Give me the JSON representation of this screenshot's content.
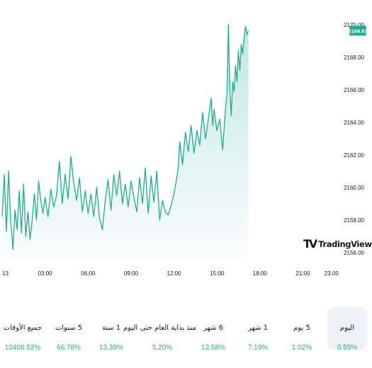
{
  "chart_data": {
    "type": "area",
    "x_ticks": [
      "13",
      "03:00",
      "06:00",
      "09:00",
      "12:00",
      "15:00",
      "18:00",
      "21:00",
      "23:00"
    ],
    "y_ticks": [
      "2170.00",
      "2168.00",
      "2166.00",
      "2164.00",
      "2162.00",
      "2160.00",
      "2158.00",
      "2156.00"
    ],
    "ylim": [
      2155.6,
      2170.3
    ],
    "x_range_hours": [
      0,
      24
    ],
    "last_price": "2169.63",
    "series": [
      {
        "values": [
          [
            0.0,
            2158.2
          ],
          [
            0.15,
            2160.8
          ],
          [
            0.3,
            2157.3
          ],
          [
            0.45,
            2161.0
          ],
          [
            0.6,
            2158.0
          ],
          [
            0.75,
            2156.2
          ],
          [
            0.9,
            2158.6
          ],
          [
            1.05,
            2157.4
          ],
          [
            1.2,
            2159.8
          ],
          [
            1.35,
            2157.2
          ],
          [
            1.5,
            2160.2
          ],
          [
            1.65,
            2157.0
          ],
          [
            1.8,
            2158.5
          ],
          [
            1.95,
            2156.8
          ],
          [
            2.1,
            2158.0
          ],
          [
            2.25,
            2159.6
          ],
          [
            2.4,
            2158.0
          ],
          [
            2.55,
            2160.4
          ],
          [
            2.7,
            2159.2
          ],
          [
            2.85,
            2158.4
          ],
          [
            3.0,
            2159.4
          ],
          [
            3.2,
            2158.2
          ],
          [
            3.4,
            2159.9
          ],
          [
            3.6,
            2158.8
          ],
          [
            3.8,
            2159.5
          ],
          [
            4.0,
            2161.6
          ],
          [
            4.2,
            2159.0
          ],
          [
            4.4,
            2160.8
          ],
          [
            4.6,
            2159.3
          ],
          [
            4.8,
            2161.9
          ],
          [
            5.0,
            2160.3
          ],
          [
            5.2,
            2159.2
          ],
          [
            5.4,
            2160.6
          ],
          [
            5.6,
            2158.5
          ],
          [
            5.8,
            2159.8
          ],
          [
            6.0,
            2158.4
          ],
          [
            6.2,
            2159.6
          ],
          [
            6.4,
            2158.2
          ],
          [
            6.6,
            2160.0
          ],
          [
            6.8,
            2158.1
          ],
          [
            7.0,
            2157.4
          ],
          [
            7.2,
            2159.2
          ],
          [
            7.4,
            2160.5
          ],
          [
            7.6,
            2158.6
          ],
          [
            7.8,
            2160.8
          ],
          [
            8.0,
            2159.5
          ],
          [
            8.2,
            2161.0
          ],
          [
            8.4,
            2159.0
          ],
          [
            8.6,
            2160.2
          ],
          [
            8.8,
            2158.8
          ],
          [
            9.0,
            2160.4
          ],
          [
            9.2,
            2159.4
          ],
          [
            9.4,
            2158.5
          ],
          [
            9.6,
            2160.6
          ],
          [
            9.8,
            2159.0
          ],
          [
            10.0,
            2161.2
          ],
          [
            10.2,
            2158.4
          ],
          [
            10.4,
            2160.7
          ],
          [
            10.6,
            2159.1
          ],
          [
            10.8,
            2161.0
          ],
          [
            11.0,
            2158.0
          ],
          [
            11.2,
            2159.2
          ],
          [
            11.4,
            2158.5
          ],
          [
            11.6,
            2158.3
          ],
          [
            11.8,
            2158.9
          ],
          [
            12.0,
            2159.6
          ],
          [
            12.2,
            2160.6
          ],
          [
            12.3,
            2161.2
          ],
          [
            12.4,
            2162.8
          ],
          [
            12.6,
            2161.4
          ],
          [
            12.8,
            2163.4
          ],
          [
            13.0,
            2162.2
          ],
          [
            13.2,
            2163.8
          ],
          [
            13.4,
            2162.1
          ],
          [
            13.6,
            2163.5
          ],
          [
            13.8,
            2162.6
          ],
          [
            14.0,
            2164.6
          ],
          [
            14.2,
            2163.0
          ],
          [
            14.4,
            2164.2
          ],
          [
            14.6,
            2165.5
          ],
          [
            14.7,
            2163.8
          ],
          [
            14.8,
            2164.8
          ],
          [
            15.0,
            2163.5
          ],
          [
            15.2,
            2164.2
          ],
          [
            15.4,
            2162.3
          ],
          [
            15.5,
            2163.6
          ],
          [
            15.6,
            2164.9
          ],
          [
            15.7,
            2165.7
          ],
          [
            15.8,
            2170.0
          ],
          [
            15.9,
            2166.2
          ],
          [
            16.0,
            2164.4
          ],
          [
            16.1,
            2166.5
          ],
          [
            16.2,
            2165.9
          ],
          [
            16.3,
            2167.5
          ],
          [
            16.4,
            2166.5
          ],
          [
            16.5,
            2168.4
          ],
          [
            16.6,
            2167.2
          ],
          [
            16.7,
            2168.8
          ],
          [
            16.8,
            2168.2
          ],
          [
            16.9,
            2169.2
          ],
          [
            17.0,
            2169.9
          ],
          [
            17.1,
            2169.4
          ],
          [
            17.2,
            2169.63
          ]
        ]
      }
    ]
  },
  "branding": {
    "logo_text": "TradingView",
    "logo_mark": "TV"
  },
  "stats": [
    {
      "label": "اليوم",
      "value": "0.55%",
      "active": true
    },
    {
      "label": "5 يوم",
      "value": "1.02%",
      "active": false
    },
    {
      "label": "1 شهر",
      "value": "7.19%",
      "active": false
    },
    {
      "label": "6 شهر",
      "value": "13.58%",
      "active": false
    },
    {
      "label": "منذ بداية العام حتى اليوم",
      "value": "5.20%",
      "active": false
    },
    {
      "label": "1 سنة",
      "value": "13.39%",
      "active": false
    },
    {
      "label": "5 سنوات",
      "value": "66.78%",
      "active": false
    },
    {
      "label": "جميع الأوقات",
      "value": "10408.52%",
      "active": false
    }
  ],
  "colors": {
    "line": "#22ab94",
    "fill_top": "#22ab94",
    "positive": "#22ab94",
    "axis_text": "#131722",
    "tag_bg": "#22ab94"
  }
}
